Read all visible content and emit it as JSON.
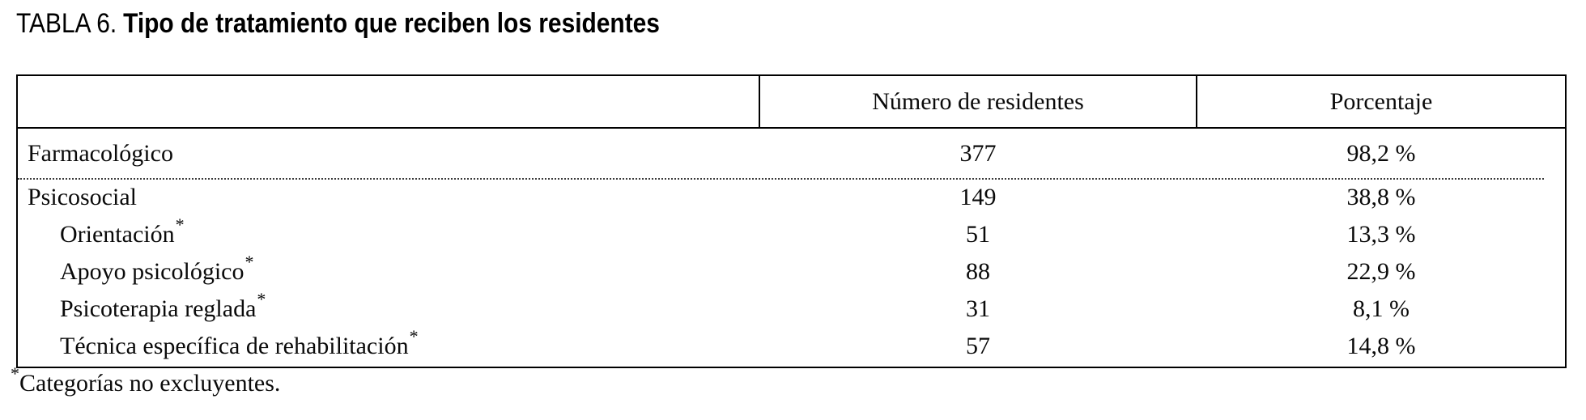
{
  "title": {
    "prefix": "TABLA 6.",
    "text": "Tipo de tratamiento que reciben los residentes"
  },
  "table": {
    "columns": [
      "",
      "Número de residentes",
      "Porcentaje"
    ],
    "rows": [
      {
        "label": "Farmacológico",
        "indent": false,
        "asterisk": "",
        "count": "377",
        "percentage": "98,2 %",
        "divider_after": true
      },
      {
        "label": "Psicosocial",
        "indent": false,
        "asterisk": "",
        "count": "149",
        "percentage": "38,8 %",
        "divider_after": false
      },
      {
        "label": "Orientación",
        "indent": true,
        "asterisk": "*",
        "count": "51",
        "percentage": "13,3 %",
        "divider_after": false
      },
      {
        "label": "Apoyo psicológico",
        "indent": true,
        "asterisk": "*",
        "count": "88",
        "percentage": "22,9 %",
        "divider_after": false
      },
      {
        "label": "Psicoterapia reglada",
        "indent": true,
        "asterisk": "*",
        "count": "31",
        "percentage": "8,1 %",
        "divider_after": false
      },
      {
        "label": "Técnica específica de rehabilitación",
        "indent": true,
        "asterisk": "*",
        "count": "57",
        "percentage": "14,8 %",
        "divider_after": false
      }
    ]
  },
  "footnote": {
    "marker": "*",
    "text": "Categorías no excluyentes."
  }
}
